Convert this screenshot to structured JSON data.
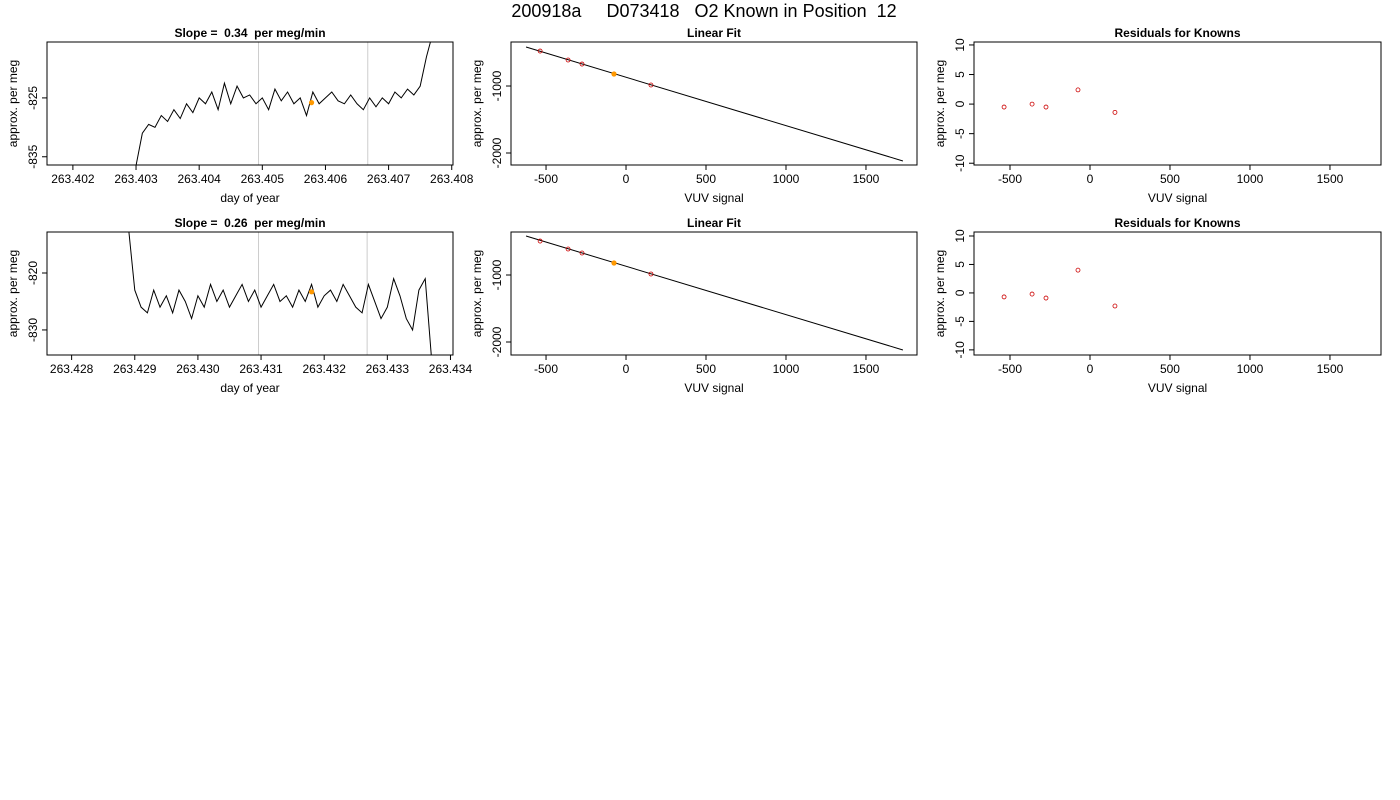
{
  "title": "200918a     D073418   O2 Known in Position  12",
  "chart_data": [
    {
      "type": "line",
      "title": "Slope =  0.34  per meg/min",
      "xlabel": "day of year",
      "ylabel": "approx. per meg",
      "xlim": [
        263.40159,
        263.40802
      ],
      "ylim": [
        -836.4,
        -815.5
      ],
      "xticks": [
        263.402,
        263.403,
        263.404,
        263.405,
        263.406,
        263.407,
        263.408
      ],
      "yticks": [
        -835,
        -825
      ],
      "reference_lines": [
        263.40494,
        263.40667
      ],
      "reference_color": "#cccccc",
      "series": [
        {
          "kind": "line",
          "color": "#000000",
          "x": [
            263.403,
            263.4031,
            263.4032,
            263.4033,
            263.4034,
            263.4035,
            263.4036,
            263.4037,
            263.4038,
            263.4039,
            263.404,
            263.4041,
            263.4042,
            263.4043,
            263.4044,
            263.4045,
            263.4046,
            263.4047,
            263.4048,
            263.4049,
            263.405,
            263.4051,
            263.4052,
            263.4053,
            263.4054,
            263.4055,
            263.4056,
            263.4057,
            263.4058,
            263.4059,
            263.406,
            263.4061,
            263.4062,
            263.4063,
            263.4064,
            263.4065,
            263.4066,
            263.4067,
            263.4068,
            263.4069,
            263.407,
            263.4071,
            263.4072,
            263.4073,
            263.4074,
            263.4075,
            263.4076,
            263.4077
          ],
          "values": [
            -836.5,
            -831,
            -829.5,
            -830,
            -828,
            -829,
            -827,
            -828.5,
            -826,
            -827.5,
            -825,
            -826,
            -824,
            -827,
            -822.5,
            -826,
            -823,
            -825,
            -824.5,
            -826,
            -825,
            -827,
            -823.5,
            -825.5,
            -824,
            -826,
            -825,
            -828,
            -824,
            -826,
            -825,
            -824,
            -825.5,
            -826,
            -824.5,
            -826,
            -827,
            -825,
            -826.5,
            -825,
            -826,
            -824,
            -825,
            -823.5,
            -824.5,
            -823,
            -818,
            -814
          ]
        },
        {
          "kind": "highlight",
          "color": "#ff9900",
          "x": [
            263.40578
          ],
          "values": [
            -825.8
          ]
        }
      ]
    },
    {
      "type": "scatter",
      "title": "Linear Fit",
      "xlabel": "VUV signal",
      "ylabel": "approx. per meg",
      "xlim": [
        -719,
        1819
      ],
      "ylim": [
        -2179,
        -343
      ],
      "xticks": [
        -500,
        0,
        500,
        1000,
        1500
      ],
      "yticks": [
        -2000,
        -1000
      ],
      "series": [
        {
          "kind": "line",
          "color": "#000000",
          "x": [
            -625,
            1731
          ],
          "values": [
            -418,
            -2119
          ]
        },
        {
          "kind": "points",
          "color": "#cc0000",
          "x": [
            -537,
            -362,
            -275,
            -75,
            156
          ],
          "values": [
            -478,
            -612,
            -672,
            -821,
            -985
          ]
        },
        {
          "kind": "highlight",
          "color": "#ff9900",
          "x": [
            -75
          ],
          "values": [
            -821
          ]
        }
      ]
    },
    {
      "type": "scatter",
      "title": "Residuals for Knowns",
      "xlabel": "VUV signal",
      "ylabel": "approx. per meg",
      "xlim": [
        -725,
        1819
      ],
      "ylim": [
        -10.3,
        10.5
      ],
      "xticks": [
        -500,
        0,
        500,
        1000,
        1500
      ],
      "yticks": [
        -10,
        -5,
        0,
        5,
        10
      ],
      "series": [
        {
          "kind": "points",
          "color": "#cc0000",
          "x": [
            -537,
            -362,
            -275,
            -75,
            156
          ],
          "values": [
            -0.5,
            0,
            -0.5,
            2.4,
            -1.4
          ]
        }
      ]
    },
    {
      "type": "line",
      "title": "Slope =  0.26  per meg/min",
      "xlabel": "day of year",
      "ylabel": "approx. per meg",
      "xlim": [
        263.42761,
        263.43404
      ],
      "ylim": [
        -834.4,
        -812.8
      ],
      "xticks": [
        263.428,
        263.429,
        {
          "value": 263.43,
          "label": "263.430"
        },
        263.431,
        263.432,
        263.433,
        263.434
      ],
      "yticks": [
        -830,
        -820
      ],
      "reference_lines": [
        263.43096,
        263.43268
      ],
      "reference_color": "#cccccc",
      "series": [
        {
          "kind": "line",
          "color": "#000000",
          "x": [
            263.4289,
            263.429,
            263.4291,
            263.4292,
            263.4293,
            263.4294,
            263.4295,
            263.4296,
            263.4297,
            263.4298,
            263.4299,
            263.43,
            263.4301,
            263.4302,
            263.4303,
            263.4304,
            263.4305,
            263.4306,
            263.4307,
            263.4308,
            263.4309,
            263.431,
            263.4311,
            263.4312,
            263.4313,
            263.4314,
            263.4315,
            263.4316,
            263.4317,
            263.4318,
            263.4319,
            263.432,
            263.4321,
            263.4322,
            263.4323,
            263.4324,
            263.4325,
            263.4326,
            263.4327,
            263.4328,
            263.4329,
            263.433,
            263.4331,
            263.4332,
            263.4333,
            263.4334,
            263.4335,
            263.4336,
            263.4337
          ],
          "values": [
            -812,
            -823,
            -826,
            -827,
            -823,
            -826,
            -824,
            -827,
            -823,
            -825,
            -828,
            -824,
            -826,
            -822,
            -825,
            -823,
            -826,
            -824,
            -822,
            -825,
            -823,
            -826,
            -824,
            -822,
            -825,
            -824,
            -826,
            -823,
            -825,
            -822,
            -826,
            -824,
            -823,
            -825,
            -822,
            -824,
            -826,
            -827,
            -822,
            -825,
            -828,
            -826,
            -821,
            -824,
            -828,
            -830,
            -823,
            -821,
            -835
          ]
        },
        {
          "kind": "highlight",
          "color": "#ff9900",
          "x": [
            263.4318
          ],
          "values": [
            -823.3
          ]
        }
      ]
    },
    {
      "type": "scatter",
      "title": "Linear Fit",
      "xlabel": "VUV signal",
      "ylabel": "approx. per meg",
      "xlim": [
        -719,
        1819
      ],
      "ylim": [
        -2194,
        -358
      ],
      "xticks": [
        -500,
        0,
        500,
        1000,
        1500
      ],
      "yticks": [
        -2000,
        -1000
      ],
      "series": [
        {
          "kind": "line",
          "color": "#000000",
          "x": [
            -625,
            1731
          ],
          "values": [
            -418,
            -2119
          ]
        },
        {
          "kind": "points",
          "color": "#cc0000",
          "x": [
            -537,
            -362,
            -275,
            -75,
            156
          ],
          "values": [
            -493,
            -612,
            -672,
            -821,
            -985
          ]
        },
        {
          "kind": "highlight",
          "color": "#ff9900",
          "x": [
            -75
          ],
          "values": [
            -821
          ]
        }
      ]
    },
    {
      "type": "scatter",
      "title": "Residuals for Knowns",
      "xlabel": "VUV signal",
      "ylabel": "approx. per meg",
      "xlim": [
        -725,
        1819
      ],
      "ylim": [
        -10.9,
        10.7
      ],
      "xticks": [
        -500,
        0,
        500,
        1000,
        1500
      ],
      "yticks": [
        -10,
        -5,
        0,
        5,
        10
      ],
      "series": [
        {
          "kind": "points",
          "color": "#cc0000",
          "x": [
            -537,
            -362,
            -275,
            -75,
            156
          ],
          "values": [
            -0.7,
            -0.2,
            -0.9,
            4.0,
            -2.3
          ]
        }
      ]
    }
  ]
}
